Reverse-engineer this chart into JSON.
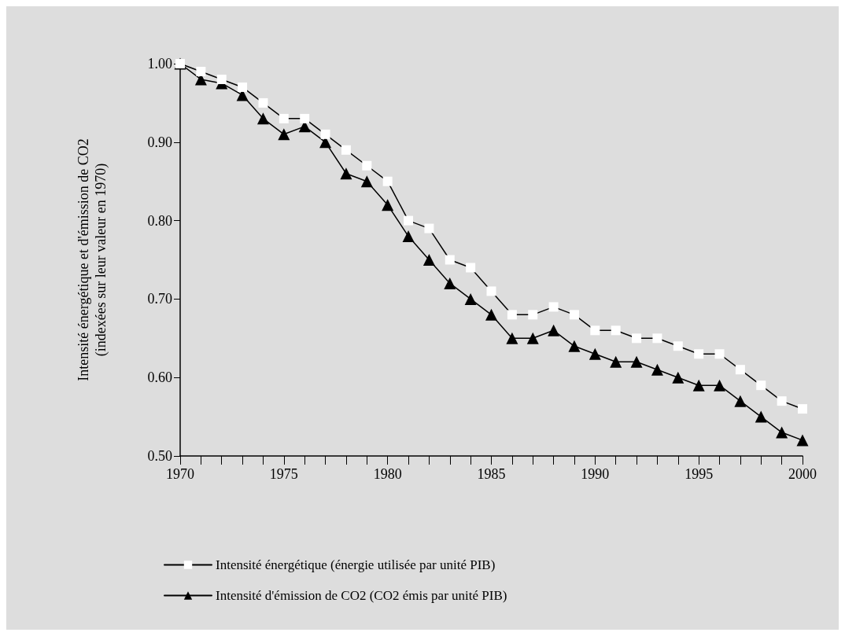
{
  "chart_data": {
    "type": "line",
    "ylabel": "Intensité énergétique et d'émission de CO2\n(indexées sur leur valeur en 1970)",
    "x": [
      1970,
      1971,
      1972,
      1973,
      1974,
      1975,
      1976,
      1977,
      1978,
      1979,
      1980,
      1981,
      1982,
      1983,
      1984,
      1985,
      1986,
      1987,
      1988,
      1989,
      1990,
      1991,
      1992,
      1993,
      1994,
      1995,
      1996,
      1997,
      1998,
      1999,
      2000
    ],
    "series": [
      {
        "name": "Intensité énergétique (énergie utilisée par unité PIB)",
        "color": "#ffffff",
        "marker": "square",
        "values": [
          1.0,
          0.99,
          0.98,
          0.97,
          0.95,
          0.93,
          0.93,
          0.91,
          0.89,
          0.87,
          0.85,
          0.8,
          0.79,
          0.75,
          0.74,
          0.71,
          0.68,
          0.68,
          0.69,
          0.68,
          0.66,
          0.66,
          0.65,
          0.65,
          0.64,
          0.63,
          0.63,
          0.61,
          0.59,
          0.57,
          0.56
        ]
      },
      {
        "name": "Intensité d'émission de CO2 (CO2 émis par unité PIB)",
        "color": "#000000",
        "marker": "triangle",
        "values": [
          1.0,
          0.98,
          0.975,
          0.96,
          0.93,
          0.91,
          0.92,
          0.9,
          0.86,
          0.85,
          0.82,
          0.78,
          0.75,
          0.72,
          0.7,
          0.68,
          0.65,
          0.65,
          0.66,
          0.64,
          0.63,
          0.62,
          0.62,
          0.61,
          0.6,
          0.59,
          0.59,
          0.57,
          0.55,
          0.53,
          0.52
        ]
      }
    ],
    "xlim": [
      1970,
      2000
    ],
    "xticks": [
      1970,
      1975,
      1980,
      1985,
      1990,
      1995,
      2000
    ],
    "ylim": [
      0.5,
      1.0
    ],
    "yticks": [
      {
        "value": 0.5,
        "label": "0.50"
      },
      {
        "value": 0.6,
        "label": "0.60"
      },
      {
        "value": 0.7,
        "label": "0.70"
      },
      {
        "value": 0.8,
        "label": "0.80"
      },
      {
        "value": 0.9,
        "label": "0.90"
      },
      {
        "value": 1.0,
        "label": "1.00"
      }
    ],
    "grid": false,
    "legend": "bottom",
    "line_style": "solid"
  }
}
